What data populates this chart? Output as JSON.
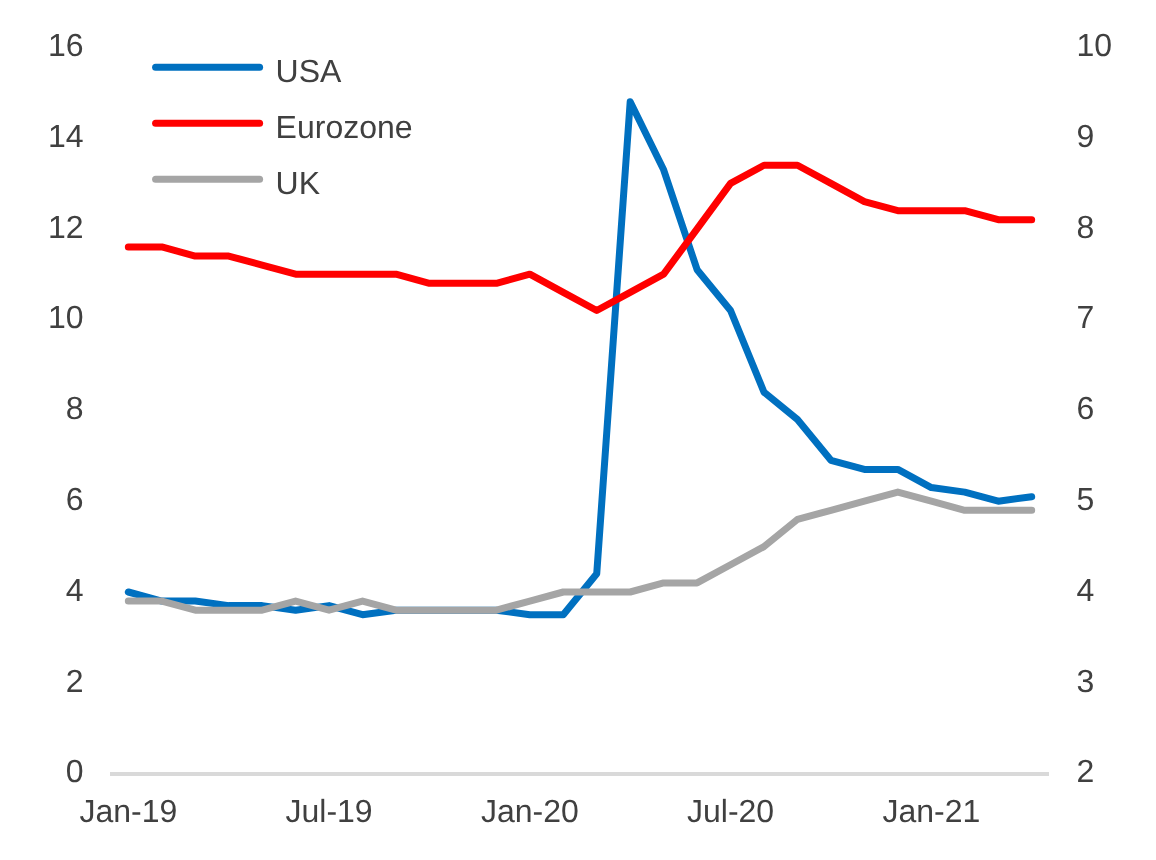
{
  "chart_data": {
    "type": "line",
    "categories": [
      "Jan-19",
      null,
      null,
      null,
      null,
      null,
      "Jul-19",
      null,
      null,
      null,
      null,
      null,
      "Jan-20",
      null,
      null,
      null,
      null,
      null,
      "Jul-20",
      null,
      null,
      null,
      null,
      null,
      "Jan-21",
      null,
      null,
      null
    ],
    "series": [
      {
        "name": "USA",
        "color": "#0070c0",
        "values": [
          4.0,
          3.8,
          3.8,
          3.7,
          3.7,
          3.6,
          3.7,
          3.5,
          3.6,
          3.6,
          3.6,
          3.6,
          3.5,
          3.5,
          4.4,
          14.8,
          13.3,
          11.1,
          10.2,
          8.4,
          7.8,
          6.9,
          6.7,
          6.7,
          6.3,
          6.2,
          6.0,
          6.1
        ]
      },
      {
        "name": "Eurozone",
        "color": "#ff0000",
        "axis": "y2",
        "values": [
          7.8,
          7.8,
          7.7,
          7.7,
          7.6,
          7.5,
          7.5,
          7.5,
          7.5,
          7.4,
          7.4,
          7.4,
          7.5,
          7.3,
          7.1,
          7.3,
          7.5,
          8.0,
          8.5,
          8.7,
          8.7,
          8.5,
          8.3,
          8.2,
          8.2,
          8.2,
          8.1,
          8.1
        ]
      },
      {
        "name": "UK",
        "color": "#a5a5a5",
        "axis": "y2",
        "values": [
          3.9,
          3.9,
          3.8,
          3.8,
          3.8,
          3.9,
          3.8,
          3.9,
          3.8,
          3.8,
          3.8,
          3.8,
          3.9,
          4.0,
          4.0,
          4.0,
          4.1,
          4.1,
          4.3,
          4.5,
          4.8,
          4.9,
          5.0,
          5.1,
          5.0,
          4.9,
          4.9,
          4.9
        ]
      }
    ],
    "ylim": [
      0,
      16
    ],
    "yticks": [
      0,
      2,
      4,
      6,
      8,
      10,
      12,
      14,
      16
    ],
    "y2lim": [
      2,
      10
    ],
    "y2ticks": [
      2,
      3,
      4,
      5,
      6,
      7,
      8,
      9,
      10
    ],
    "grid": false,
    "legend": "top left",
    "marker": "none",
    "line_style": "solid"
  }
}
